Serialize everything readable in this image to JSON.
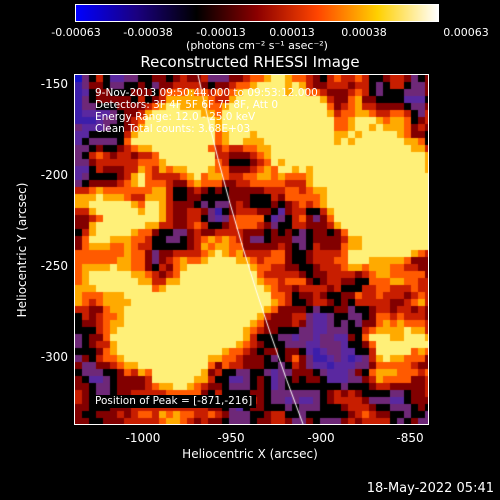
{
  "colorbar": {
    "tick_labels": [
      "-0.00063",
      "-0.00038",
      "-0.00013",
      "0.00013",
      "0.00038",
      "0.00063"
    ],
    "unit": "(photons cm⁻² s⁻¹ asec⁻²)",
    "stops": [
      "#0000ff",
      "#1a0080",
      "#000000",
      "#8b0000",
      "#ff4500",
      "#ffd000",
      "#ffffff"
    ]
  },
  "image": {
    "title": "Reconstructed RHESSI Image",
    "time_range": "9-Nov-2013 09:50:44.000 to 09:53:12.000",
    "detectors": "Detectors: 3F 4F 5F 6F 7F 8F, Att 0",
    "energy": "Energy Range: 12.0 - 25.0 keV",
    "clean": "Clean     Total counts: 3.68E+03",
    "peak": "Position of Peak = [-871,-216]"
  },
  "axes": {
    "x_title": "Heliocentric X (arcsec)",
    "y_title": "Heliocentric Y (arcsec)",
    "x_ticks": [
      "-1000",
      "-950",
      "-900",
      "-850"
    ],
    "y_ticks": [
      "-150",
      "-200",
      "-250",
      "-300"
    ]
  },
  "footer": {
    "timestamp": "18-May-2022 05:41"
  }
}
